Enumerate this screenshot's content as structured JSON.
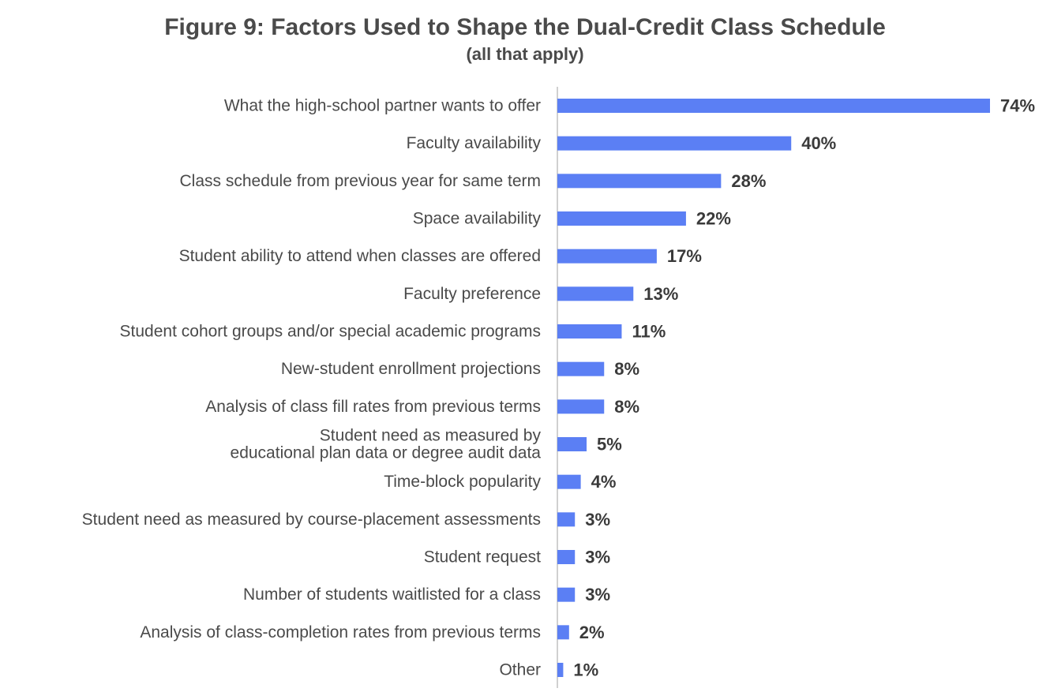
{
  "chart_data": {
    "type": "bar",
    "orientation": "horizontal",
    "title": "Figure 9: Factors Used to Shape the Dual-Credit Class Schedule",
    "subtitle": "(all that apply)",
    "xlabel": "",
    "ylabel": "",
    "xlim": [
      0,
      74
    ],
    "grid": false,
    "legend": "none",
    "bar_color": "#5b7ff4",
    "axis_color": "#d0d0d0",
    "categories": [
      [
        "What the high-school partner wants to offer"
      ],
      [
        "Faculty availability"
      ],
      [
        "Class schedule from previous year for same term"
      ],
      [
        "Space availability"
      ],
      [
        "Student ability to attend when classes are offered"
      ],
      [
        "Faculty preference"
      ],
      [
        "Student cohort groups and/or special academic programs"
      ],
      [
        "New-student enrollment projections"
      ],
      [
        "Analysis of class fill rates from previous terms"
      ],
      [
        "Student need as measured by",
        "educational plan data or degree audit data"
      ],
      [
        "Time-block popularity"
      ],
      [
        "Student need as measured by course-placement assessments"
      ],
      [
        "Student request"
      ],
      [
        "Number of students waitlisted for a class"
      ],
      [
        "Analysis of class-completion rates from previous terms"
      ],
      [
        "Other"
      ]
    ],
    "values": [
      74,
      40,
      28,
      22,
      17,
      13,
      11,
      8,
      8,
      5,
      4,
      3,
      3,
      3,
      2,
      1
    ],
    "value_labels": [
      "74%",
      "40%",
      "28%",
      "22%",
      "17%",
      "13%",
      "11%",
      "8%",
      "8%",
      "5%",
      "4%",
      "3%",
      "3%",
      "3%",
      "2%",
      "1%"
    ]
  }
}
